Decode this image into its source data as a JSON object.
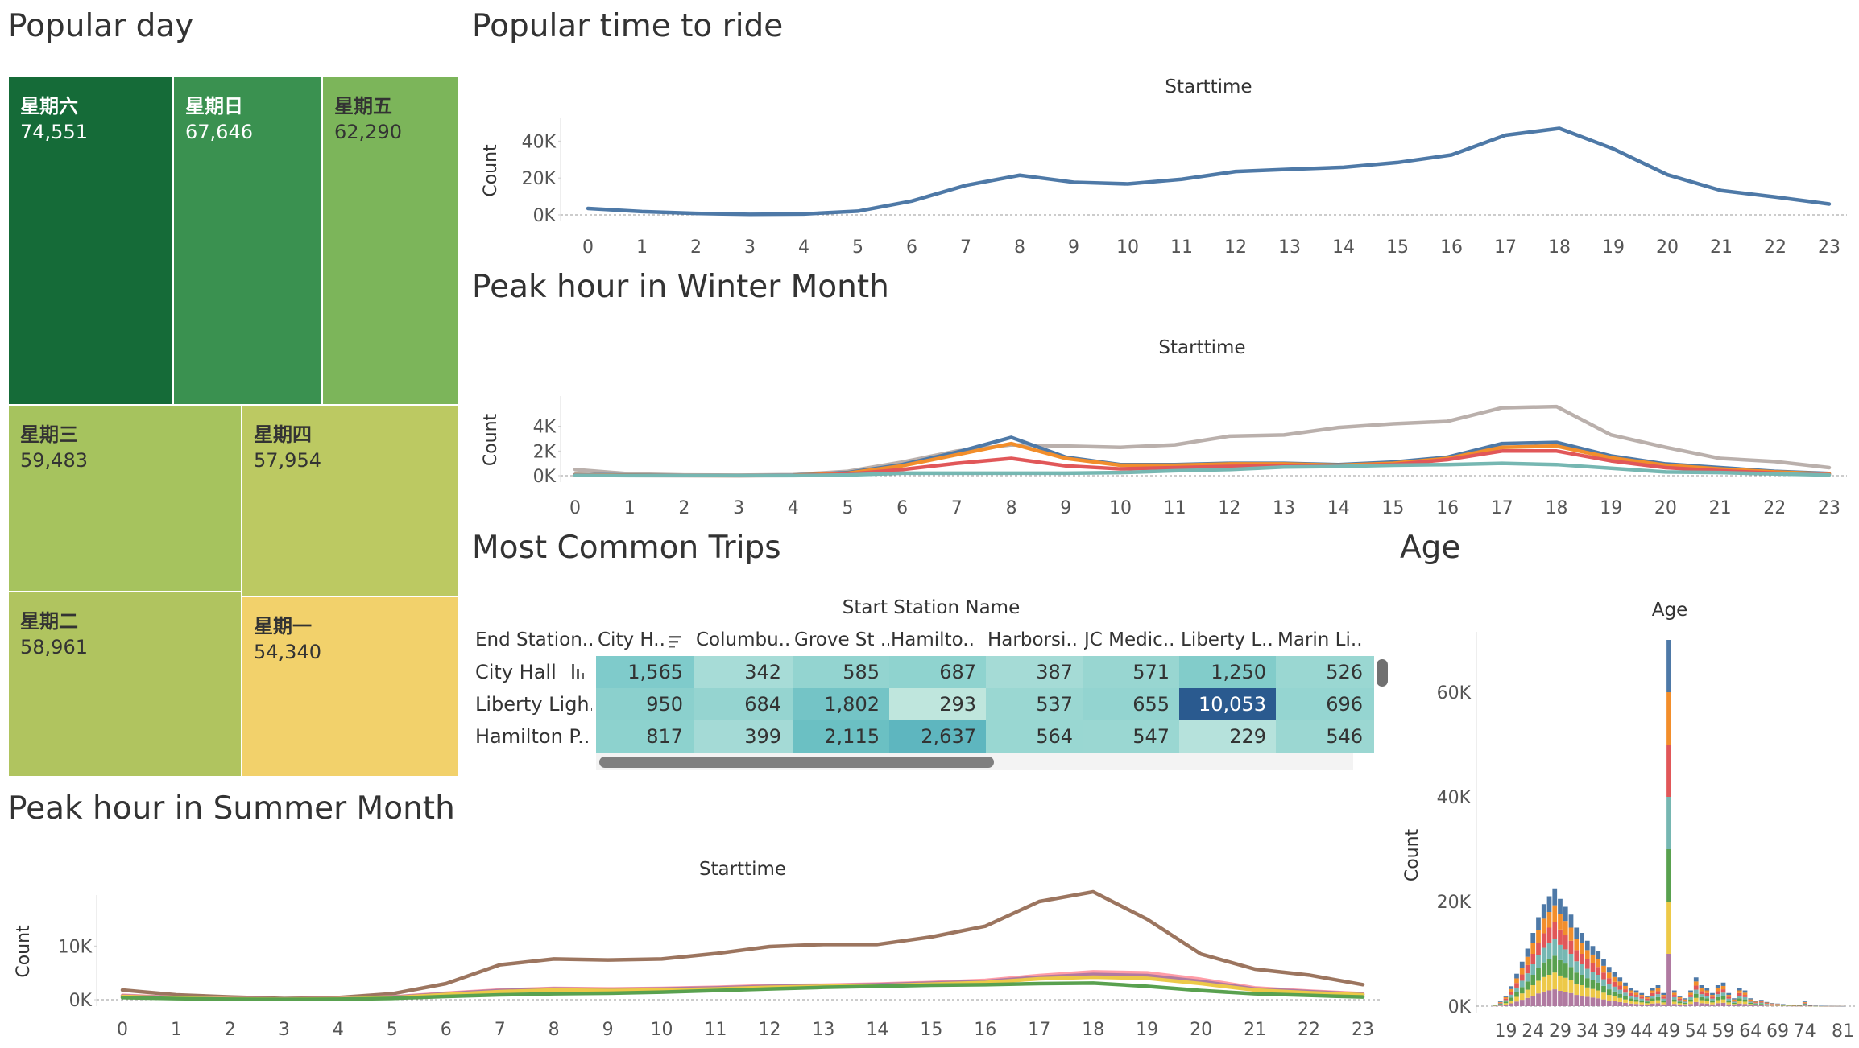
{
  "titles": {
    "popular_day": "Popular day",
    "popular_time": "Popular time to ride",
    "winter": "Peak hour in Winter Month",
    "trips": "Most Common Trips",
    "age": "Age",
    "summer": "Peak hour in Summer Month"
  },
  "colors": {
    "blue": "#4e79a7",
    "orange": "#f28e2b",
    "red": "#e15759",
    "teal": "#76b7b2",
    "green": "#59a14f",
    "yellow": "#edc948",
    "purple": "#b07aa1",
    "pink": "#ff9da7",
    "brown": "#9c755f",
    "gray": "#bab0ac"
  },
  "treemap": {
    "tiles": [
      {
        "name": "星期六",
        "value": "74,551",
        "color": "#156b38"
      },
      {
        "name": "星期日",
        "value": "67,646",
        "color": "#3a9150"
      },
      {
        "name": "星期五",
        "value": "62,290",
        "color": "#7cb55a"
      },
      {
        "name": "星期三",
        "value": "59,483",
        "color": "#a6c35e"
      },
      {
        "name": "星期四",
        "value": "57,954",
        "color": "#bcc962"
      },
      {
        "name": "星期二",
        "value": "58,961",
        "color": "#b0c45f"
      },
      {
        "name": "星期一",
        "value": "54,340",
        "color": "#f2d16b"
      }
    ]
  },
  "chart_data": [
    {
      "id": "popular_time",
      "type": "line",
      "title": "Starttime",
      "ylabel": "Count",
      "ylim": [
        0,
        48000
      ],
      "yticks": [
        "0K",
        "20K",
        "40K"
      ],
      "ytick_values": [
        0,
        20000,
        40000
      ],
      "x": [
        "0",
        "1",
        "2",
        "3",
        "4",
        "5",
        "6",
        "7",
        "8",
        "9",
        "10",
        "11",
        "12",
        "13",
        "14",
        "15",
        "16",
        "17",
        "18",
        "19",
        "20",
        "21",
        "22",
        "23"
      ],
      "series": [
        {
          "color": "#4e79a7",
          "values": [
            3500,
            1800,
            800,
            300,
            500,
            2000,
            7500,
            16000,
            21500,
            17700,
            16800,
            19300,
            23500,
            24700,
            25800,
            28400,
            32500,
            43200,
            46900,
            35800,
            21800,
            13200,
            9700,
            5900
          ]
        }
      ]
    },
    {
      "id": "winter",
      "type": "line",
      "title": "Starttime",
      "ylabel": "Count",
      "ylim": [
        0,
        5800
      ],
      "yticks": [
        "0K",
        "2K",
        "4K"
      ],
      "ytick_values": [
        0,
        2000,
        4000
      ],
      "x": [
        "0",
        "1",
        "2",
        "3",
        "4",
        "5",
        "6",
        "7",
        "8",
        "9",
        "10",
        "11",
        "12",
        "13",
        "14",
        "15",
        "16",
        "17",
        "18",
        "19",
        "20",
        "21",
        "22",
        "23"
      ],
      "series": [
        {
          "color": "#bab0ac",
          "values": [
            500,
            150,
            60,
            40,
            80,
            350,
            1100,
            2000,
            2500,
            2400,
            2300,
            2500,
            3200,
            3300,
            3900,
            4200,
            4400,
            5500,
            5600,
            3300,
            2300,
            1400,
            1150,
            650
          ]
        },
        {
          "color": "#4e79a7",
          "values": [
            100,
            50,
            20,
            10,
            30,
            250,
            900,
            1900,
            3100,
            1500,
            900,
            900,
            1000,
            1000,
            900,
            1100,
            1500,
            2600,
            2700,
            1600,
            950,
            650,
            350,
            180
          ]
        },
        {
          "color": "#f28e2b",
          "values": [
            70,
            30,
            15,
            10,
            25,
            200,
            800,
            1700,
            2600,
            1400,
            850,
            850,
            950,
            950,
            850,
            1000,
            1400,
            2300,
            2400,
            1450,
            850,
            550,
            300,
            150
          ]
        },
        {
          "color": "#e15759",
          "values": [
            50,
            20,
            10,
            5,
            15,
            120,
            500,
            1000,
            1400,
            800,
            550,
            650,
            750,
            800,
            800,
            900,
            1300,
            2000,
            2000,
            1200,
            650,
            400,
            200,
            90
          ]
        },
        {
          "color": "#76b7b2",
          "values": [
            30,
            10,
            5,
            5,
            10,
            60,
            200,
            200,
            200,
            200,
            250,
            400,
            500,
            700,
            750,
            850,
            900,
            1000,
            900,
            600,
            300,
            250,
            150,
            60
          ]
        }
      ]
    },
    {
      "id": "summer",
      "type": "line",
      "title": "Starttime",
      "ylabel": "Count",
      "ylim": [
        0,
        18000
      ],
      "yticks": [
        "0K",
        "10K"
      ],
      "ytick_values": [
        0,
        10000
      ],
      "x": [
        "0",
        "1",
        "2",
        "3",
        "4",
        "5",
        "6",
        "7",
        "8",
        "9",
        "10",
        "11",
        "12",
        "13",
        "14",
        "15",
        "16",
        "17",
        "18",
        "19",
        "20",
        "21",
        "22",
        "23"
      ],
      "series": [
        {
          "color": "#9c755f",
          "values": [
            1800,
            900,
            500,
            200,
            400,
            1100,
            3000,
            6500,
            7600,
            7400,
            7600,
            8600,
            9900,
            10300,
            10300,
            11700,
            13700,
            18300,
            20100,
            15000,
            8500,
            5700,
            4600,
            2800
          ]
        },
        {
          "color": "#ff9da7",
          "values": [
            800,
            400,
            200,
            100,
            200,
            500,
            1200,
            1800,
            2100,
            2000,
            2100,
            2300,
            2600,
            2700,
            2900,
            3200,
            3600,
            4500,
            5200,
            5000,
            3800,
            2200,
            1600,
            1100
          ]
        },
        {
          "color": "#b07aa1",
          "values": [
            700,
            350,
            180,
            90,
            180,
            450,
            1100,
            1700,
            2000,
            1900,
            2000,
            2200,
            2500,
            2600,
            2800,
            3100,
            3400,
            4200,
            4700,
            4500,
            3400,
            2000,
            1500,
            1000
          ]
        },
        {
          "color": "#edc948",
          "values": [
            600,
            300,
            150,
            80,
            150,
            380,
            950,
            1500,
            1800,
            1700,
            1800,
            2000,
            2300,
            2500,
            2600,
            2900,
            3200,
            3900,
            4200,
            4000,
            3000,
            1800,
            1300,
            900
          ]
        },
        {
          "color": "#59a14f",
          "values": [
            400,
            200,
            100,
            50,
            100,
            250,
            600,
            900,
            1100,
            1200,
            1400,
            1700,
            2000,
            2300,
            2500,
            2700,
            2800,
            3000,
            3100,
            2500,
            1700,
            1100,
            800,
            500
          ]
        }
      ]
    },
    {
      "id": "trips",
      "type": "table",
      "header_title": "Start Station Name",
      "row_header_label": "End Station..",
      "columns": [
        "City H..",
        "Columbu..",
        "Grove St ..",
        "Hamilto..",
        "Harborsi..",
        "JC Medic..",
        "Liberty L..",
        "Marin Li.."
      ],
      "rows": [
        {
          "label": "City Hall",
          "values": [
            "1,565",
            "342",
            "585",
            "687",
            "387",
            "571",
            "1,250",
            "526"
          ],
          "colors": [
            "#7fcbcb",
            "#a7dcd7",
            "#93d4d0",
            "#8fd3cf",
            "#a5dbd6",
            "#98d6d1",
            "#82ccca",
            "#9ad7d2"
          ]
        },
        {
          "label": "Liberty Ligh..",
          "values": [
            "950",
            "684",
            "1,802",
            "293",
            "537",
            "655",
            "10,053",
            "696"
          ],
          "colors": [
            "#8bd0cd",
            "#95d4d0",
            "#74c4c6",
            "#bfe6dd",
            "#9ad7d2",
            "#93d4d0",
            "#2a5a8f",
            "#95d5d1"
          ]
        },
        {
          "label": "Hamilton P..",
          "values": [
            "817",
            "399",
            "2,115",
            "2,637",
            "564",
            "547",
            "229",
            "546"
          ],
          "colors": [
            "#8dd2ce",
            "#a4dad6",
            "#6bc0c3",
            "#5eb6bf",
            "#99d7d2",
            "#9ad7d2",
            "#b6e2dc",
            "#9bd7d2"
          ]
        }
      ]
    },
    {
      "id": "age",
      "type": "bar",
      "title": "Age",
      "ylabel": "Count",
      "ylim": [
        0,
        70000
      ],
      "yticks": [
        "0K",
        "20K",
        "40K",
        "60K"
      ],
      "ytick_values": [
        0,
        20000,
        40000,
        60000
      ],
      "x_tick_labels": [
        "19",
        "24",
        "29",
        "34",
        "39",
        "44",
        "49",
        "54",
        "59",
        "64",
        "69",
        "74",
        "81"
      ],
      "ages": [
        17,
        18,
        19,
        20,
        21,
        22,
        23,
        24,
        25,
        26,
        27,
        28,
        29,
        30,
        31,
        32,
        33,
        34,
        35,
        36,
        37,
        38,
        39,
        40,
        41,
        42,
        43,
        44,
        45,
        46,
        47,
        48,
        49,
        50,
        51,
        52,
        53,
        54,
        55,
        56,
        57,
        58,
        59,
        60,
        61,
        62,
        63,
        64,
        65,
        66,
        67,
        68,
        69,
        70,
        71,
        72,
        73,
        74,
        75,
        76,
        77,
        78,
        79,
        80,
        81
      ],
      "values": [
        300,
        900,
        2000,
        3800,
        6200,
        8500,
        11000,
        14000,
        17000,
        19500,
        21000,
        22500,
        20500,
        19000,
        17500,
        15000,
        14000,
        12500,
        11500,
        10500,
        9000,
        7500,
        6500,
        5500,
        4500,
        3500,
        3000,
        2500,
        2000,
        3500,
        4000,
        2500,
        70000,
        3000,
        2000,
        1500,
        3000,
        5500,
        4000,
        3500,
        2500,
        4000,
        4500,
        2500,
        1500,
        3500,
        3000,
        1500,
        1000,
        1200,
        800,
        600,
        500,
        400,
        300,
        250,
        200,
        900,
        150,
        100,
        80,
        60,
        40,
        30,
        20
      ],
      "stack_colors": [
        "#b07aa1",
        "#edc948",
        "#59a14f",
        "#76b7b2",
        "#e15759",
        "#f28e2b",
        "#4e79a7"
      ]
    }
  ]
}
